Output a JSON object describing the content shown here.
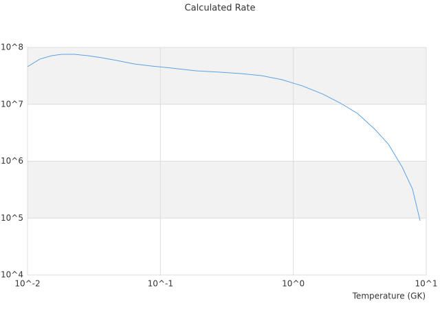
{
  "chart_data": {
    "type": "line",
    "title": "Calculated Rate",
    "x_label": "Temperature (GK)",
    "x": [
      0.01,
      0.0124,
      0.0152,
      0.0181,
      0.0225,
      0.0285,
      0.0362,
      0.0471,
      0.0634,
      0.0853,
      0.122,
      0.185,
      0.281,
      0.402,
      0.574,
      0.82,
      1.17,
      1.67,
      2.26,
      3.04,
      4.1,
      5.2,
      6.59,
      7.88,
      8.99
    ],
    "values": [
      45900000,
      62400000,
      71600000,
      75700000,
      75700000,
      71600000,
      65900000,
      58900000,
      51300000,
      47200000,
      43400000,
      38800000,
      36700000,
      34700000,
      32000000,
      27100000,
      21100000,
      15100000,
      10500000,
      6920000,
      3650000,
      1980000,
      789000,
      324000,
      90200
    ],
    "color": "#5aa0e6",
    "log_x": true,
    "log_y": true,
    "grid": true,
    "band_color": "#f2f2f2",
    "xlim": [
      0.01,
      10
    ],
    "xticks": [
      {
        "value": 0.01,
        "label": "10^-2"
      },
      {
        "value": 0.1,
        "label": "10^-1"
      },
      {
        "value": 1,
        "label": "10^0"
      },
      {
        "value": 10,
        "label": "10^1"
      }
    ],
    "ylim": [
      10000,
      100000000
    ],
    "yticks": [
      {
        "value": 10000,
        "label": "10^4"
      },
      {
        "value": 100000,
        "label": "10^5"
      },
      {
        "value": 1000000,
        "label": "10^6"
      },
      {
        "value": 10000000,
        "label": "10^7"
      },
      {
        "value": 100000000,
        "label": "10^8"
      }
    ]
  }
}
